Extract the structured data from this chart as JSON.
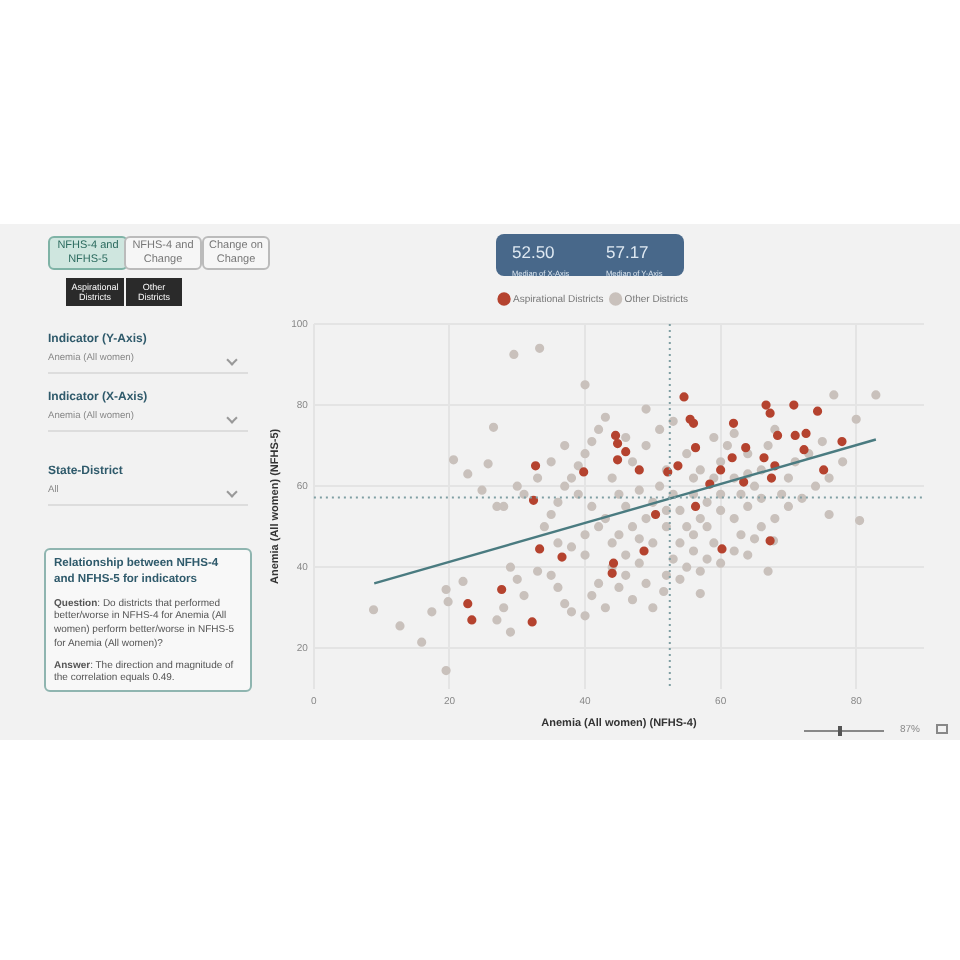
{
  "chart_data": {
    "type": "scatter",
    "xlabel": "Anemia (All women) (NFHS-4)",
    "ylabel": "Anemia (All women) (NFHS-5)",
    "xlim": [
      0,
      90
    ],
    "xticks": [
      0,
      20,
      40,
      60,
      80
    ],
    "ylim": [
      10,
      100
    ],
    "yticks": [
      20,
      40,
      60,
      80,
      100
    ],
    "grid": true,
    "legend": "top",
    "marker": "circle",
    "series": [
      {
        "name": "Aspirational Districts",
        "color": "#b5432f",
        "x": [
          32.7,
          32.4,
          33.3,
          36.6,
          44.2,
          22.7,
          23.3,
          32.2,
          27.7,
          44.5,
          44.8,
          44.8,
          46,
          39.8,
          54.6,
          55.5,
          56,
          66.7,
          70.8,
          74.3,
          67.3,
          61.9,
          68.4,
          71,
          72.6,
          77.9,
          72.3,
          75.2,
          63.7,
          56.3,
          68,
          67.5,
          52.2,
          48,
          58.4,
          60,
          53.7,
          67.3,
          60.2,
          48.7,
          50.4,
          56.3,
          63.4,
          66.4,
          61.7,
          44
        ],
        "values": [
          65,
          56.5,
          44.5,
          42.5,
          41,
          31,
          27,
          26.5,
          34.5,
          72.5,
          70.5,
          66.5,
          68.5,
          63.5,
          82,
          76.5,
          75.5,
          80,
          80,
          78.5,
          78,
          75.5,
          72.5,
          72.5,
          73,
          71,
          69,
          64,
          69.5,
          69.5,
          65,
          62,
          63.5,
          64,
          60.5,
          64,
          65,
          46.5,
          44.5,
          44,
          53,
          55,
          61,
          67,
          67,
          38.5
        ]
      },
      {
        "name": "Other Districts",
        "color": "#c9c1bc",
        "x": [
          29.5,
          33.3,
          40,
          8.8,
          12.7,
          15.9,
          19.5,
          20.6,
          22.7,
          26.5,
          25.7,
          24.8,
          17.4,
          19.5,
          22,
          19.8,
          76.7,
          82.9,
          80,
          49,
          76,
          80.5,
          57,
          51.6,
          67,
          67.8,
          30,
          31,
          28,
          27,
          29,
          30,
          31,
          28,
          27,
          29,
          33,
          35,
          36,
          37,
          38,
          40,
          41,
          42,
          43,
          45,
          46,
          47,
          48,
          49,
          50,
          52,
          53,
          54,
          55,
          56,
          57,
          58,
          59,
          60,
          62,
          63,
          64,
          65,
          66,
          68,
          70,
          72,
          74,
          76,
          78,
          34,
          35,
          36,
          37,
          38,
          39,
          40,
          41,
          42,
          43,
          44,
          45,
          46,
          47,
          48,
          49,
          50,
          51,
          52,
          53,
          54,
          55,
          56,
          57,
          58,
          59,
          60,
          61,
          62,
          63,
          64,
          65,
          66,
          67,
          68,
          69,
          70,
          71,
          73,
          75,
          38,
          40,
          42,
          44,
          46,
          50,
          52,
          54,
          56,
          58,
          60,
          62,
          64,
          66,
          33,
          35,
          37,
          39,
          41,
          43,
          45,
          47,
          49,
          51,
          53,
          55,
          57,
          59,
          36,
          40,
          44,
          48,
          52,
          56,
          60,
          62,
          64,
          46
        ],
        "values": [
          92.5,
          94,
          85,
          29.5,
          25.5,
          21.5,
          14.5,
          66.5,
          63,
          74.5,
          65.5,
          59,
          29,
          34.5,
          36.5,
          31.5,
          82.5,
          82.5,
          76.5,
          79,
          53,
          51.5,
          33.5,
          34,
          39,
          46.5,
          60,
          58,
          55,
          55,
          40,
          37,
          33,
          30,
          27,
          24,
          39,
          38,
          35,
          31,
          29,
          28,
          33,
          36,
          30,
          35,
          38,
          32,
          41,
          36,
          30,
          38,
          42,
          37,
          40,
          44,
          39,
          42,
          46,
          41,
          44,
          48,
          43,
          47,
          50,
          52,
          55,
          57,
          60,
          62,
          66,
          50,
          53,
          56,
          60,
          62,
          65,
          68,
          71,
          74,
          77,
          62,
          58,
          55,
          50,
          47,
          52,
          56,
          60,
          64,
          58,
          54,
          50,
          48,
          52,
          56,
          62,
          66,
          70,
          73,
          58,
          55,
          60,
          64,
          70,
          74,
          58,
          62,
          66,
          68,
          71,
          45,
          48,
          50,
          46,
          43,
          46,
          50,
          46,
          58,
          50,
          54,
          52,
          63,
          57,
          62,
          66,
          70,
          58,
          55,
          52,
          48,
          66,
          70,
          74,
          76,
          68,
          64,
          72,
          46,
          43,
          40,
          59,
          54,
          62,
          58,
          62,
          68,
          72
        ]
      },
      {
        "type": "line",
        "marker": "none",
        "color": "#4a7b80",
        "x": [
          8.9,
          82.9
        ],
        "values": [
          36,
          71.5
        ]
      }
    ],
    "ref_lines": [
      {
        "axis": "x",
        "value": 52.5,
        "color": "#7f9fa3",
        "line_style": "dotted"
      },
      {
        "axis": "y",
        "value": 57.17,
        "color": "#7f9fa3",
        "line_style": "dotted"
      }
    ],
    "annotations": [
      "NFHS-4 and NFHS-5",
      "NFHS-4 and Change",
      "Change on Change",
      "Aspirational Districts",
      "Other Districts",
      "Indicator (Y-Axis)",
      "Anemia (All women)",
      "Indicator (X-Axis)",
      "Anemia (All women)",
      "State-District",
      "All",
      "Relationship between NFHS-4 and NFHS-5 for indicators",
      "Question: Do districts that performed better/worse in NFHS-4 for Anemia (All women) perform better/worse in NFHS-5 for Anemia (All women)?",
      "Answer: The direction and magnitude of the correlation equals 0.49.",
      "87%",
      "52.50",
      "Median of X-Axis",
      "57.17",
      "Median of Y-Axis"
    ]
  }
}
